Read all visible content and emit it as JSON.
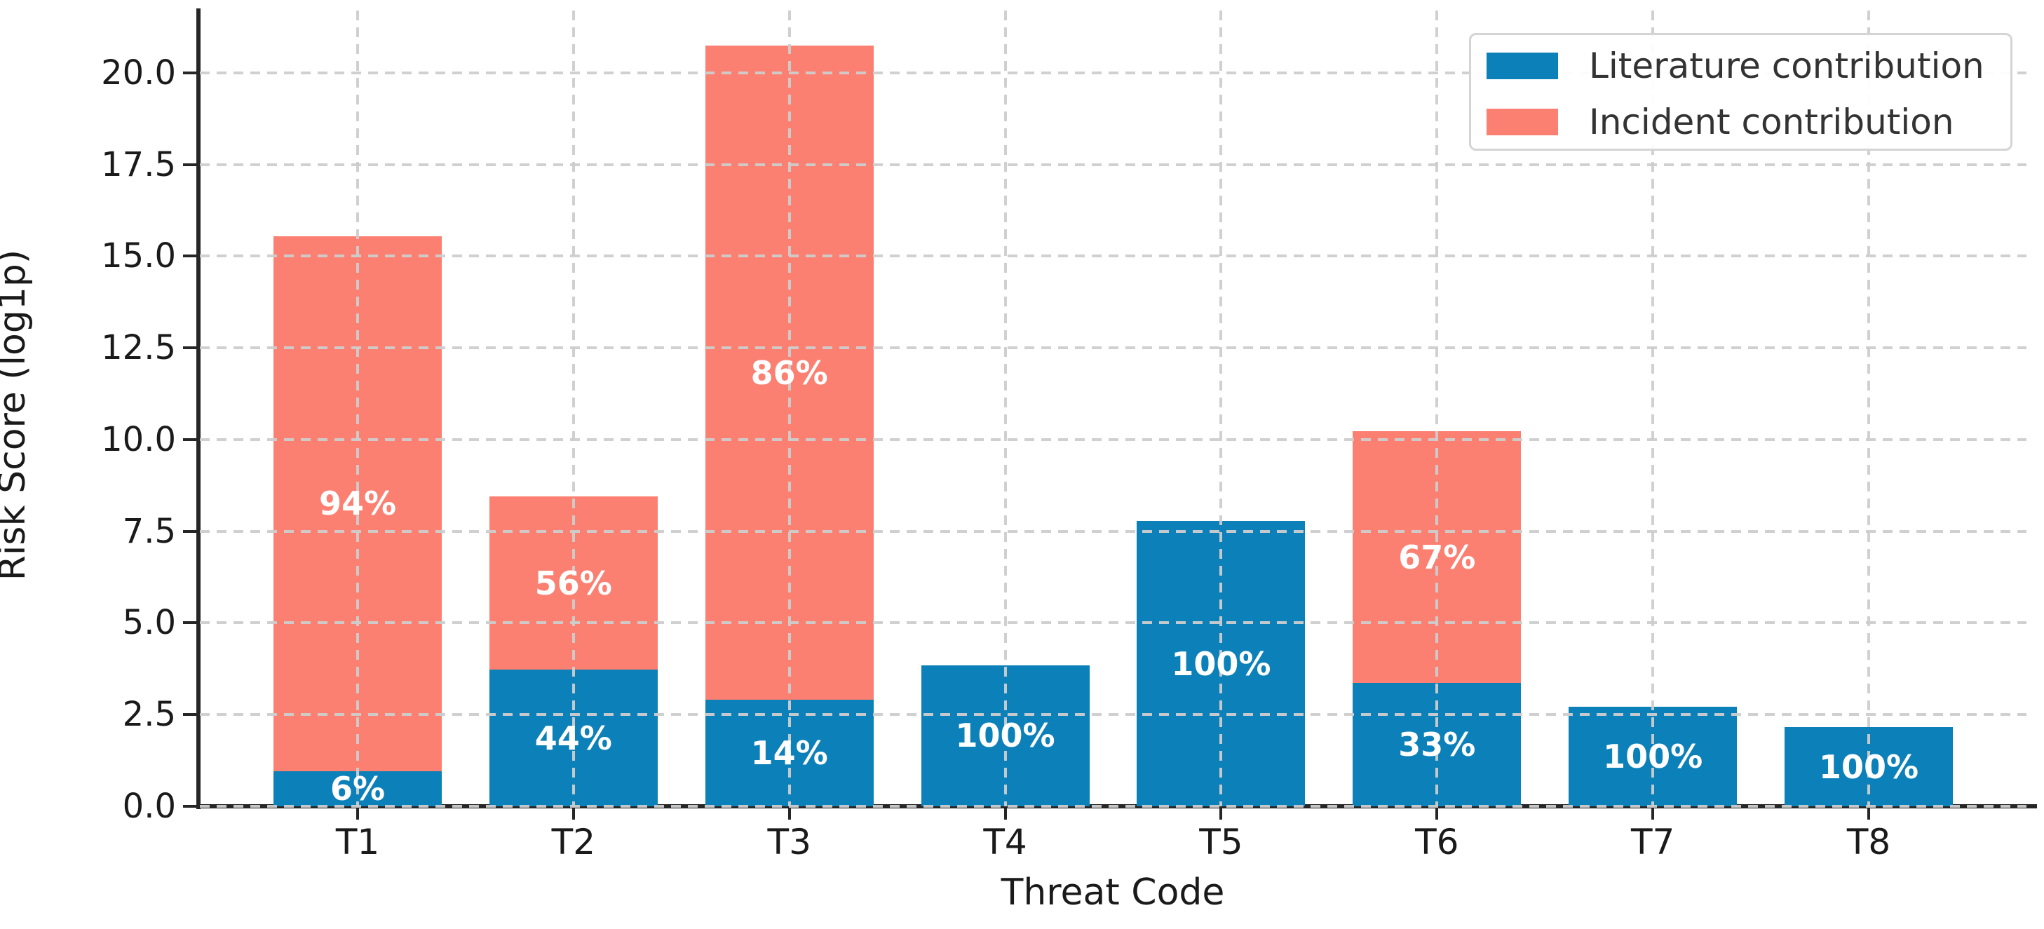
{
  "chart_data": {
    "type": "bar",
    "stacked": true,
    "title": "",
    "xlabel": "Threat Code",
    "ylabel": "Risk Score (log1p)",
    "categories": [
      "T1",
      "T2",
      "T3",
      "T4",
      "T5",
      "T6",
      "T7",
      "T8"
    ],
    "series": [
      {
        "name": "Literature contribution",
        "color": "#0c80b8",
        "values": [
          0.95,
          3.72,
          2.9,
          3.85,
          7.78,
          3.37,
          2.72,
          2.16
        ],
        "percent_labels": [
          "6%",
          "44%",
          "14%",
          "100%",
          "100%",
          "33%",
          "100%",
          "100%"
        ]
      },
      {
        "name": "Incident contribution",
        "color": "#FB8071",
        "values": [
          14.6,
          4.73,
          17.85,
          0,
          0,
          6.85,
          0,
          0
        ],
        "percent_labels": [
          "94%",
          "56%",
          "86%",
          "",
          "",
          "67%",
          "",
          ""
        ]
      }
    ],
    "totals": [
      15.55,
      8.45,
      20.75,
      3.85,
      7.78,
      10.22,
      2.72,
      2.16
    ],
    "ylim": [
      0,
      21.7
    ],
    "yticks": [
      "0.0",
      "2.5",
      "5.0",
      "7.5",
      "10.0",
      "12.5",
      "15.0",
      "17.5",
      "20.0"
    ],
    "grid": "dashed gridlines on both axes, drawn over bars",
    "legend_position": "upper right"
  },
  "colors": {
    "literature": "#0c80b8",
    "incident": "#FB8071",
    "gridline": "#cdcdcd",
    "spine": "#262626",
    "label_text": "#ffffff",
    "axis_text": "#1a1a1a"
  }
}
